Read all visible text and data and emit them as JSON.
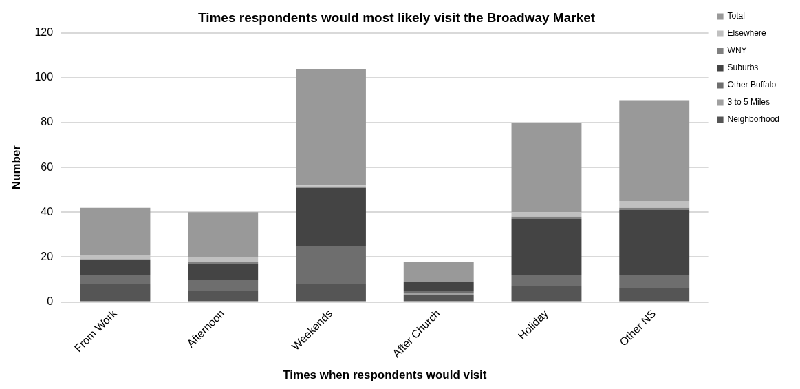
{
  "chart_data": {
    "type": "bar",
    "stacked": true,
    "title": "Times respondents would most likely visit the Broadway Market",
    "xlabel": "Times when respondents would visit",
    "ylabel": "Number",
    "categories": [
      "From Work",
      "Afternoon",
      "Weekends",
      "After Church",
      "Holiday",
      "Other NS"
    ],
    "series": [
      {
        "name": "Neighborhood",
        "color": "#555555",
        "values": [
          8,
          5,
          8,
          3,
          7,
          6
        ]
      },
      {
        "name": "3 to 5 Miles",
        "color": "#a0a0a0",
        "values": [
          0,
          0,
          0,
          1,
          0,
          0
        ]
      },
      {
        "name": "Other Buffalo",
        "color": "#6e6e6e",
        "values": [
          4,
          5,
          17,
          1,
          5,
          6
        ]
      },
      {
        "name": "Suburbs",
        "color": "#444444",
        "values": [
          7,
          7,
          26,
          4,
          25,
          29
        ]
      },
      {
        "name": "WNY",
        "color": "#808080",
        "values": [
          0,
          1,
          0,
          0,
          1,
          1
        ]
      },
      {
        "name": "Elsewhere",
        "color": "#c0c0c0",
        "values": [
          2,
          2,
          1,
          0,
          2,
          3
        ]
      },
      {
        "name": "Total",
        "color": "#999999",
        "values": [
          21,
          20,
          52,
          9,
          40,
          45
        ]
      }
    ],
    "ylim": [
      0,
      120
    ],
    "yticks": [
      0,
      20,
      40,
      60,
      80,
      100,
      120
    ],
    "grid": "y",
    "legend": "right"
  }
}
